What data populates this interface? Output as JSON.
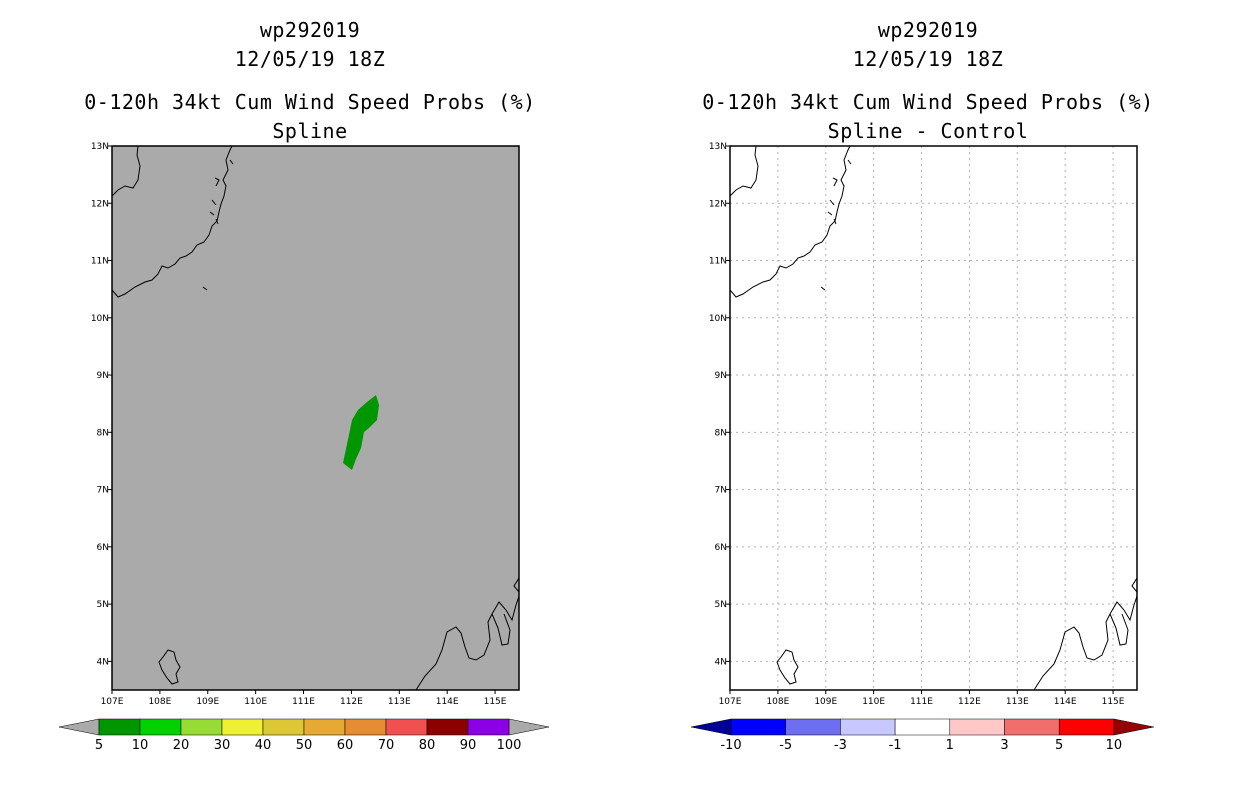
{
  "left_panel": {
    "title_line1": "wp292019",
    "title_line2": "12/05/19 18Z",
    "title_line3": "0-120h 34kt Cum Wind Speed Probs (%)",
    "title_line4": "Spline",
    "background_color": "#aaaaaa",
    "probability_area_color": "#009600",
    "colorbar": {
      "colors": [
        "#009600",
        "#00d200",
        "#96dc32",
        "#f0f032",
        "#dcc832",
        "#e6aa32",
        "#e68c32",
        "#f05050",
        "#8c0000",
        "#8c00e6"
      ],
      "labels": [
        "5",
        "10",
        "20",
        "30",
        "40",
        "50",
        "60",
        "70",
        "80",
        "90",
        "100"
      ]
    }
  },
  "right_panel": {
    "title_line1": "wp292019",
    "title_line2": "12/05/19 18Z",
    "title_line3": "0-120h 34kt Cum Wind Speed Probs (%)",
    "title_line4": "Spline - Control",
    "background_color": "#ffffff",
    "colorbar": {
      "colors": [
        "#0000ff",
        "#6e6ef0",
        "#c8c8ff",
        "#ffffff",
        "#ffc8c8",
        "#f06e6e",
        "#ff0000"
      ],
      "labels": [
        "-10",
        "-5",
        "-3",
        "-1",
        "1",
        "3",
        "5",
        "10"
      ],
      "low_triangle_color": "#000096",
      "high_triangle_color": "#960000"
    }
  },
  "axes": {
    "lon_labels": [
      "107E",
      "108E",
      "109E",
      "110E",
      "111E",
      "112E",
      "113E",
      "114E",
      "115E"
    ],
    "lat_labels": [
      "13N",
      "12N",
      "11N",
      "10N",
      "9N",
      "8N",
      "7N",
      "6N",
      "5N",
      "4N"
    ]
  }
}
